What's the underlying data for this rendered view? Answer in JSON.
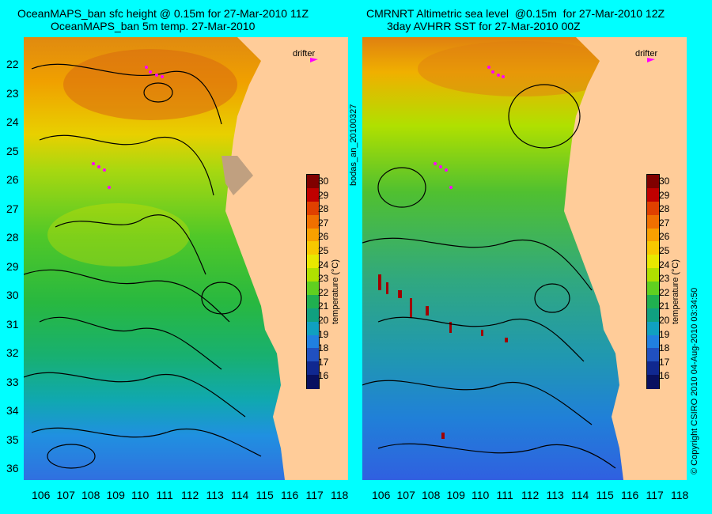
{
  "left_panel": {
    "title_line1": "OceanMAPS_ban sfc height @ 0.15m for 27-Mar-2010 11Z",
    "title_line2": "OceanMAPS_ban 5m temp. 27-Mar-2010",
    "drifter_label": "drifter",
    "colorbar_label": "temperature (°C)"
  },
  "right_panel": {
    "title_line1": "CMRNRT Altimetric sea level  @0.15m  for 27-Mar-2010 12Z",
    "title_line2": "3day AVHRR SST for 27-Mar-2010 00Z",
    "drifter_label": "drifter",
    "colorbar_label": "temperature (°C)"
  },
  "side_label_left": "bodas_an_20100327",
  "side_label_right": "© Copyright CSIRO 2010    04-Aug-2010 03:34:50",
  "lat_labels": [
    "22",
    "23",
    "24",
    "25",
    "26",
    "27",
    "28",
    "29",
    "30",
    "31",
    "32",
    "33",
    "34",
    "35",
    "36"
  ],
  "lon_labels": [
    "106",
    "107",
    "108",
    "109",
    "110",
    "111",
    "112",
    "113",
    "114",
    "115",
    "116",
    "117",
    "118"
  ],
  "colorbar_ticks": [
    "30",
    "29",
    "28",
    "27",
    "26",
    "25",
    "24",
    "23",
    "22",
    "21",
    "20",
    "19",
    "18",
    "17",
    "16"
  ],
  "colors": {
    "background": "#00ffff",
    "land": "#ffcc99",
    "contour": "#000000",
    "drifter": "#ff00ff",
    "colorbar_scale": [
      "#800000",
      "#c00000",
      "#e04000",
      "#f07000",
      "#f8a000",
      "#f8c800",
      "#e8e800",
      "#b0e000",
      "#60d020",
      "#20b050",
      "#10a080",
      "#10a0c0",
      "#2080e0",
      "#2050c0",
      "#102890",
      "#081060"
    ]
  }
}
